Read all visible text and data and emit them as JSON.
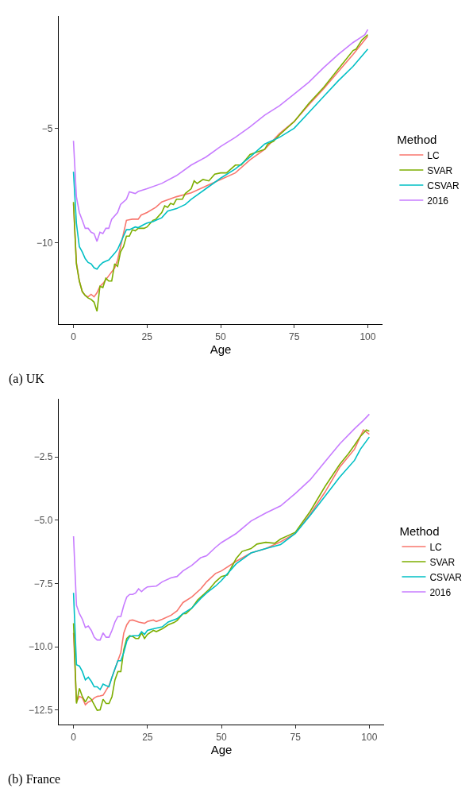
{
  "chart_data": [
    {
      "type": "line",
      "xlabel": "Age",
      "legend_title": "Method",
      "legend": "right",
      "grid": false,
      "annotations": [
        "(a) UK"
      ],
      "xlim": [
        -5,
        105
      ],
      "xticks": [
        0,
        25,
        50,
        75,
        100
      ],
      "ylim": [
        -13.55,
        -0.1
      ],
      "yticks": [
        {
          "value": -10,
          "label": "−10"
        },
        {
          "value": -5,
          "label": "−5"
        }
      ],
      "series": [
        {
          "name": "LC",
          "color": "#f8766d",
          "x": [
            0,
            1,
            2,
            3,
            4,
            5,
            6,
            7,
            8,
            9,
            10,
            12,
            14,
            15,
            16,
            17,
            18,
            20,
            22,
            23,
            25,
            28,
            30,
            35,
            40,
            45,
            50,
            55,
            60,
            65,
            70,
            75,
            80,
            85,
            90,
            95,
            100
          ],
          "values": [
            -8.3,
            -10.86,
            -11.67,
            -12.13,
            -12.3,
            -12.36,
            -12.25,
            -12.36,
            -12.18,
            -11.9,
            -11.78,
            -11.44,
            -11.1,
            -10.75,
            -10.17,
            -9.6,
            -9.02,
            -8.97,
            -8.97,
            -8.79,
            -8.68,
            -8.45,
            -8.22,
            -7.99,
            -7.82,
            -7.53,
            -7.24,
            -6.95,
            -6.38,
            -5.92,
            -5.23,
            -4.71,
            -3.97,
            -3.28,
            -2.53,
            -1.78,
            -0.98
          ]
        },
        {
          "name": "SVAR",
          "color": "#7cae00",
          "x": [
            0,
            1,
            2,
            3,
            4,
            5,
            6,
            7,
            8,
            9,
            10,
            11,
            12,
            13,
            14,
            15,
            16,
            17,
            18,
            19,
            20,
            21,
            22,
            24,
            25,
            27,
            28,
            30,
            31,
            32,
            33,
            34,
            35,
            37,
            38,
            40,
            41,
            42,
            44,
            46,
            48,
            50,
            52,
            55,
            57,
            60,
            65,
            66,
            68,
            70,
            75,
            80,
            85,
            90,
            95,
            96,
            98,
            100
          ],
          "values": [
            -8.22,
            -10.92,
            -11.67,
            -12.13,
            -12.3,
            -12.41,
            -12.47,
            -12.59,
            -12.99,
            -11.9,
            -11.95,
            -11.55,
            -11.67,
            -11.67,
            -10.92,
            -11.03,
            -10.4,
            -10.17,
            -9.71,
            -9.71,
            -9.43,
            -9.48,
            -9.37,
            -9.37,
            -9.31,
            -9.02,
            -8.97,
            -8.68,
            -8.39,
            -8.45,
            -8.28,
            -8.33,
            -8.1,
            -8.1,
            -7.85,
            -7.64,
            -7.3,
            -7.41,
            -7.24,
            -7.3,
            -7.01,
            -6.95,
            -6.95,
            -6.61,
            -6.61,
            -6.15,
            -5.92,
            -5.69,
            -5.57,
            -5.29,
            -4.71,
            -3.91,
            -3.22,
            -2.41,
            -1.61,
            -1.55,
            -1.15,
            -0.92
          ]
        },
        {
          "name": "CSVAR",
          "color": "#00bfc4",
          "x": [
            0,
            1,
            2,
            3,
            4,
            5,
            6,
            7,
            8,
            9,
            10,
            11,
            12,
            14,
            15,
            16,
            17,
            18,
            19,
            21,
            22,
            24,
            25,
            27,
            28,
            30,
            32,
            35,
            38,
            40,
            45,
            50,
            55,
            60,
            65,
            70,
            75,
            80,
            85,
            90,
            95,
            100
          ],
          "values": [
            -6.9,
            -9.14,
            -10.17,
            -10.4,
            -10.69,
            -10.86,
            -10.92,
            -11.09,
            -11.15,
            -10.98,
            -10.86,
            -10.8,
            -10.75,
            -10.46,
            -10.29,
            -10.0,
            -9.71,
            -9.43,
            -9.43,
            -9.31,
            -9.34,
            -9.2,
            -9.14,
            -9.08,
            -9.02,
            -8.91,
            -8.62,
            -8.51,
            -8.33,
            -8.1,
            -7.64,
            -7.18,
            -6.78,
            -6.26,
            -5.69,
            -5.4,
            -5.0,
            -4.31,
            -3.62,
            -2.93,
            -2.3,
            -1.55
          ]
        },
        {
          "name": "2016",
          "color": "#c77cff",
          "x": [
            0,
            1,
            2,
            3,
            4,
            5,
            6,
            7,
            8,
            9,
            10,
            11,
            12,
            13,
            15,
            16,
            18,
            19,
            21,
            22,
            25,
            30,
            35,
            40,
            45,
            50,
            55,
            60,
            65,
            70,
            75,
            80,
            85,
            90,
            95,
            97,
            99,
            100
          ],
          "values": [
            -5.55,
            -7.99,
            -8.68,
            -9.02,
            -9.37,
            -9.37,
            -9.54,
            -9.6,
            -9.94,
            -9.54,
            -9.6,
            -9.37,
            -9.37,
            -8.97,
            -8.68,
            -8.33,
            -8.1,
            -7.78,
            -7.85,
            -7.76,
            -7.64,
            -7.41,
            -7.07,
            -6.61,
            -6.26,
            -5.8,
            -5.4,
            -4.94,
            -4.43,
            -4.02,
            -3.51,
            -2.99,
            -2.36,
            -1.78,
            -1.26,
            -1.09,
            -0.92,
            -0.69
          ]
        }
      ]
    },
    {
      "type": "line",
      "xlabel": "Age",
      "legend_title": "Method",
      "legend": "right",
      "grid": false,
      "annotations": [
        "(b) France"
      ],
      "xlim": [
        -5,
        105
      ],
      "xticks": [
        0,
        25,
        50,
        75,
        100
      ],
      "ylim": [
        -13.07,
        -0.2
      ],
      "yticks": [
        {
          "value": -12.5,
          "label": "−12.5"
        },
        {
          "value": -10,
          "label": "−10.0"
        },
        {
          "value": -7.5,
          "label": "−7.5"
        },
        {
          "value": -5,
          "label": "−5.0"
        },
        {
          "value": -2.5,
          "label": "−2.5"
        }
      ],
      "series": [
        {
          "name": "LC",
          "color": "#f8766d",
          "x": [
            0,
            1,
            2,
            3,
            4,
            5,
            6,
            7,
            8,
            9,
            10,
            12,
            14,
            16,
            17,
            18,
            19,
            20,
            22,
            24,
            25,
            27,
            28,
            30,
            33,
            35,
            37,
            40,
            43,
            45,
            48,
            50,
            55,
            60,
            65,
            70,
            75,
            80,
            85,
            90,
            95,
            98,
            100
          ],
          "values": [
            -9.45,
            -12.18,
            -11.96,
            -12.02,
            -12.29,
            -12.18,
            -12.13,
            -12.02,
            -11.96,
            -11.94,
            -11.91,
            -11.53,
            -10.87,
            -10.22,
            -9.45,
            -9.13,
            -8.96,
            -8.94,
            -9.02,
            -9.07,
            -9.0,
            -8.94,
            -9.0,
            -8.91,
            -8.75,
            -8.58,
            -8.25,
            -8.03,
            -7.71,
            -7.43,
            -7.1,
            -7.0,
            -6.62,
            -6.29,
            -6.12,
            -5.85,
            -5.52,
            -4.76,
            -3.89,
            -2.9,
            -2.19,
            -1.43,
            -1.6
          ]
        },
        {
          "name": "SVAR",
          "color": "#7cae00",
          "x": [
            0,
            1,
            2,
            3,
            4,
            5,
            6,
            7,
            8,
            9,
            10,
            11,
            12,
            13,
            14,
            15,
            16,
            17,
            18,
            19,
            20,
            21,
            22,
            23,
            24,
            25,
            27,
            28,
            30,
            32,
            34,
            35,
            37,
            38,
            40,
            42,
            44,
            46,
            48,
            50,
            52,
            55,
            57,
            60,
            62,
            65,
            68,
            70,
            73,
            75,
            80,
            85,
            90,
            93,
            95,
            97,
            99,
            100
          ],
          "values": [
            -9.07,
            -12.24,
            -11.64,
            -11.97,
            -12.18,
            -11.97,
            -12.07,
            -12.29,
            -12.51,
            -12.49,
            -12.07,
            -12.24,
            -12.24,
            -11.97,
            -11.31,
            -10.98,
            -10.98,
            -10.11,
            -9.67,
            -9.56,
            -9.59,
            -9.67,
            -9.67,
            -9.45,
            -9.67,
            -9.51,
            -9.35,
            -9.4,
            -9.29,
            -9.13,
            -9.04,
            -8.96,
            -8.69,
            -8.69,
            -8.47,
            -8.14,
            -7.93,
            -7.71,
            -7.43,
            -7.22,
            -7.16,
            -6.51,
            -6.23,
            -6.12,
            -5.94,
            -5.87,
            -5.91,
            -5.74,
            -5.58,
            -5.47,
            -4.65,
            -3.67,
            -2.79,
            -2.36,
            -2.03,
            -1.68,
            -1.43,
            -1.48
          ]
        },
        {
          "name": "CSVAR",
          "color": "#00bfc4",
          "x": [
            0,
            1,
            2,
            3,
            4,
            5,
            6,
            7,
            8,
            9,
            10,
            11,
            12,
            13,
            14,
            15,
            16,
            17,
            18,
            19,
            20,
            22,
            23,
            24,
            25,
            27,
            30,
            32,
            35,
            37,
            40,
            43,
            45,
            48,
            50,
            55,
            60,
            65,
            70,
            75,
            80,
            85,
            90,
            95,
            97,
            100
          ],
          "values": [
            -7.87,
            -10.71,
            -10.76,
            -10.98,
            -11.31,
            -11.2,
            -11.36,
            -11.58,
            -11.58,
            -11.69,
            -11.47,
            -11.53,
            -11.58,
            -11.2,
            -10.87,
            -10.55,
            -10.55,
            -10.22,
            -9.78,
            -9.59,
            -9.56,
            -9.56,
            -9.4,
            -9.51,
            -9.35,
            -9.29,
            -9.21,
            -9.02,
            -8.89,
            -8.69,
            -8.47,
            -8.09,
            -7.87,
            -7.6,
            -7.38,
            -6.72,
            -6.29,
            -6.12,
            -5.96,
            -5.52,
            -4.81,
            -4.05,
            -3.29,
            -2.63,
            -2.19,
            -1.71
          ]
        },
        {
          "name": "2016",
          "color": "#c77cff",
          "x": [
            0,
            1,
            2,
            3,
            4,
            5,
            6,
            7,
            8,
            9,
            10,
            11,
            12,
            13,
            14,
            15,
            16,
            17,
            18,
            19,
            20,
            21,
            22,
            23,
            24,
            25,
            28,
            30,
            33,
            35,
            37,
            40,
            43,
            45,
            48,
            50,
            55,
            60,
            65,
            70,
            75,
            80,
            85,
            90,
            95,
            98,
            100
          ],
          "values": [
            -5.63,
            -8.36,
            -8.69,
            -8.91,
            -9.24,
            -9.18,
            -9.35,
            -9.62,
            -9.73,
            -9.73,
            -9.45,
            -9.62,
            -9.62,
            -9.35,
            -9.02,
            -8.8,
            -8.8,
            -8.36,
            -8.03,
            -7.93,
            -7.93,
            -7.87,
            -7.71,
            -7.82,
            -7.71,
            -7.63,
            -7.6,
            -7.43,
            -7.27,
            -7.22,
            -7.0,
            -6.78,
            -6.48,
            -6.4,
            -6.07,
            -5.88,
            -5.52,
            -5.03,
            -4.71,
            -4.43,
            -3.94,
            -3.4,
            -2.69,
            -1.98,
            -1.38,
            -1.05,
            -0.81
          ]
        }
      ]
    }
  ]
}
